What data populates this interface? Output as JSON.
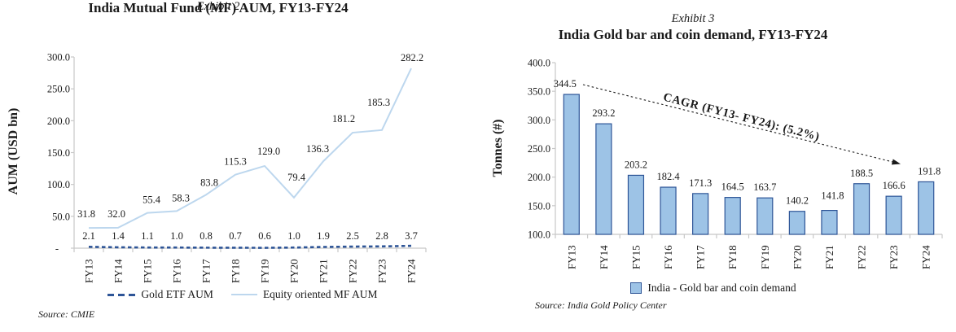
{
  "exhibit2": {
    "subtitle": "Exhibit 2",
    "title": "India Mutual Fund (MF) AUM, FY13-FY24",
    "y_axis_title": "AUM (USD bn)",
    "source": "Source: CMIE",
    "legend": [
      {
        "label": "Gold ETF AUM"
      },
      {
        "label": "Equity oriented MF AUM"
      }
    ]
  },
  "exhibit3": {
    "subtitle": "Exhibit 3",
    "title": "India Gold bar and coin demand, FY13-FY24",
    "y_axis_title": "Tonnes (#)",
    "source": "Source: India Gold Policy Center",
    "annotation": "CAGR (FY13- FY24): (5.2%)",
    "legend": [
      {
        "label": "India - Gold bar and coin demand"
      }
    ]
  },
  "colors": {
    "gold_etf_line": "#2E5597",
    "equity_line": "#BDD7EE",
    "bar_fill": "#9DC3E6",
    "bar_border": "#2E5597",
    "axis": "#C8C8C8",
    "text": "#1a1a1a"
  },
  "chart_data": [
    {
      "type": "line",
      "subtitle": "Exhibit 2",
      "title": "India Mutual Fund (MF) AUM, FY13-FY24",
      "xlabel": "",
      "ylabel": "AUM (USD bn)",
      "ylim": [
        0,
        300
      ],
      "ytick_labels": [
        "-",
        "50.0",
        "100.0",
        "150.0",
        "200.0",
        "250.0",
        "300.0"
      ],
      "grid": false,
      "legend_position": "bottom",
      "categories": [
        "FY13",
        "FY14",
        "FY15",
        "FY16",
        "FY17",
        "FY18",
        "FY19",
        "FY20",
        "FY21",
        "FY22",
        "FY23",
        "FY24"
      ],
      "series": [
        {
          "name": "Gold ETF AUM",
          "line_style": "dashed",
          "values": [
            2.1,
            1.4,
            1.1,
            1.0,
            0.8,
            0.7,
            0.6,
            1.0,
            1.9,
            2.5,
            2.8,
            3.7
          ]
        },
        {
          "name": "Equity oriented MF AUM",
          "line_style": "solid",
          "values": [
            31.8,
            32.0,
            55.4,
            58.3,
            83.8,
            115.3,
            129.0,
            79.4,
            136.3,
            181.2,
            185.3,
            282.2
          ]
        }
      ],
      "source": "Source: CMIE"
    },
    {
      "type": "bar",
      "subtitle": "Exhibit 3",
      "title": "India Gold bar and coin demand, FY13-FY24",
      "xlabel": "",
      "ylabel": "Tonnes (#)",
      "ylim": [
        100,
        400
      ],
      "ytick_labels": [
        "100.0",
        "150.0",
        "200.0",
        "250.0",
        "300.0",
        "350.0",
        "400.0"
      ],
      "grid": false,
      "legend_position": "bottom",
      "categories": [
        "FY13",
        "FY14",
        "FY15",
        "FY16",
        "FY17",
        "FY18",
        "FY19",
        "FY20",
        "FY21",
        "FY22",
        "FY23",
        "FY24"
      ],
      "values": [
        344.5,
        293.2,
        203.2,
        182.4,
        171.3,
        164.5,
        163.7,
        140.2,
        141.8,
        188.5,
        166.6,
        191.8
      ],
      "legend": [
        "India - Gold bar and coin demand"
      ],
      "annotation": "CAGR (FY13- FY24): (5.2%)",
      "source": "Source: India Gold Policy Center"
    }
  ]
}
